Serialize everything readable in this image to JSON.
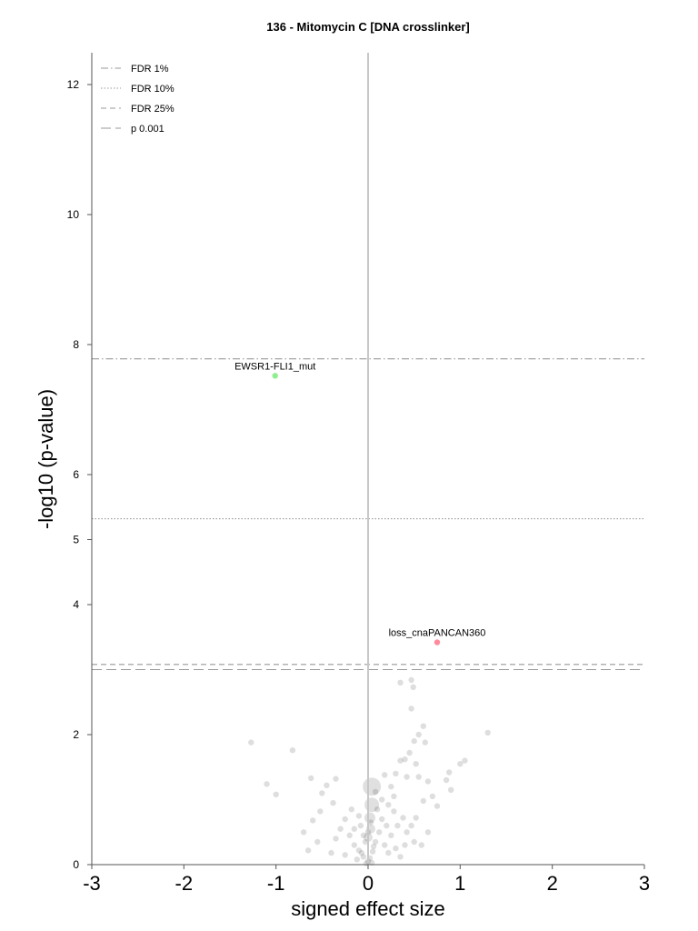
{
  "chart_data": {
    "type": "scatter",
    "title": "136 - Mitomycin C [DNA crosslinker]",
    "xlabel": "signed effect size",
    "ylabel": "-log10 (p-value)",
    "xlim": [
      -3,
      3
    ],
    "ylim": [
      0,
      12.5
    ],
    "x_ticks": [
      "-3",
      "-2",
      "-1",
      "0",
      "1",
      "2",
      "3"
    ],
    "y_ticks": [
      "0",
      "2",
      "4",
      "5",
      "6",
      "8",
      "10",
      "12"
    ],
    "y_tick_values": [
      0,
      2,
      4,
      5,
      6,
      8,
      10,
      12
    ],
    "thresholds": [
      {
        "label": "FDR 1%",
        "y": 7.78,
        "style": "dashdot"
      },
      {
        "label": "FDR 10%",
        "y": 5.32,
        "style": "dotted"
      },
      {
        "label": "FDR 25%",
        "y": 3.08,
        "style": "dashed"
      },
      {
        "label": "p 0.001",
        "y": 3.0,
        "style": "longdash"
      }
    ],
    "legend_position": "top-left",
    "highlighted_points": [
      {
        "label": "EWSR1-FLI1_mut",
        "x": -1.01,
        "y": 7.52,
        "color": "#90ee90"
      },
      {
        "label": "loss_cnaPANCAN360",
        "x": 0.75,
        "y": 3.42,
        "color": "#ff8a9a"
      }
    ],
    "background_points": [
      [
        -1.27,
        1.88
      ],
      [
        -0.82,
        1.76
      ],
      [
        -1.1,
        1.24
      ],
      [
        -1.0,
        1.08
      ],
      [
        1.3,
        2.03
      ],
      [
        1.05,
        1.6
      ],
      [
        1.0,
        1.55
      ],
      [
        0.88,
        1.42
      ],
      [
        0.9,
        1.15
      ],
      [
        0.85,
        1.3
      ],
      [
        0.35,
        2.8
      ],
      [
        0.47,
        2.84
      ],
      [
        0.49,
        2.73
      ],
      [
        0.47,
        2.4
      ],
      [
        0.6,
        2.13
      ],
      [
        0.55,
        2.0
      ],
      [
        0.62,
        1.88
      ],
      [
        0.5,
        1.9
      ],
      [
        0.45,
        1.72
      ],
      [
        0.52,
        1.55
      ],
      [
        0.4,
        1.62
      ],
      [
        0.3,
        1.4
      ],
      [
        0.35,
        1.6
      ],
      [
        0.42,
        1.35
      ],
      [
        0.25,
        1.2
      ],
      [
        0.28,
        1.05
      ],
      [
        0.18,
        1.38
      ],
      [
        0.55,
        1.35
      ],
      [
        0.65,
        1.28
      ],
      [
        0.7,
        1.05
      ],
      [
        0.75,
        0.9
      ],
      [
        0.6,
        0.98
      ],
      [
        0.52,
        0.72
      ],
      [
        0.47,
        0.6
      ],
      [
        0.65,
        0.5
      ],
      [
        -0.35,
        1.32
      ],
      [
        -0.45,
        1.22
      ],
      [
        -0.5,
        1.1
      ],
      [
        -0.38,
        0.95
      ],
      [
        -0.62,
        1.33
      ],
      [
        -0.52,
        0.82
      ],
      [
        -0.6,
        0.68
      ],
      [
        -0.7,
        0.5
      ],
      [
        -0.55,
        0.35
      ],
      [
        -0.65,
        0.22
      ],
      [
        -0.25,
        0.7
      ],
      [
        -0.3,
        0.55
      ],
      [
        -0.2,
        0.45
      ],
      [
        -0.35,
        0.4
      ],
      [
        -0.15,
        0.3
      ],
      [
        -0.4,
        0.18
      ],
      [
        -0.25,
        0.15
      ],
      [
        -0.1,
        0.22
      ],
      [
        -0.05,
        0.12
      ],
      [
        -0.12,
        0.08
      ],
      [
        0.1,
        0.85
      ],
      [
        0.15,
        0.7
      ],
      [
        0.2,
        0.6
      ],
      [
        0.12,
        0.5
      ],
      [
        0.25,
        0.45
      ],
      [
        0.08,
        0.35
      ],
      [
        0.18,
        0.3
      ],
      [
        0.3,
        0.25
      ],
      [
        0.22,
        0.18
      ],
      [
        0.35,
        0.12
      ],
      [
        0.05,
        0.2
      ],
      [
        0.02,
        0.1
      ],
      [
        0.0,
        0.05
      ],
      [
        -0.02,
        0.02
      ],
      [
        0.04,
        0.03
      ],
      [
        0.28,
        0.82
      ],
      [
        0.38,
        0.72
      ],
      [
        0.42,
        0.5
      ],
      [
        0.5,
        0.35
      ],
      [
        0.4,
        0.3
      ],
      [
        0.58,
        0.3
      ],
      [
        0.32,
        0.6
      ],
      [
        0.22,
        0.92
      ],
      [
        0.15,
        1.0
      ],
      [
        0.08,
        1.12
      ],
      [
        -0.08,
        0.6
      ],
      [
        -0.15,
        0.55
      ],
      [
        -0.05,
        0.45
      ],
      [
        -0.18,
        0.85
      ],
      [
        -0.1,
        0.75
      ],
      [
        0.0,
        0.5
      ],
      [
        0.03,
        0.65
      ],
      [
        -0.03,
        0.35
      ],
      [
        0.06,
        0.28
      ],
      [
        -0.07,
        0.18
      ]
    ],
    "large_points": [
      [
        0.04,
        1.2
      ],
      [
        0.04,
        0.92
      ],
      [
        0.02,
        0.72
      ],
      [
        0.0,
        0.42
      ],
      [
        0.03,
        0.55
      ]
    ]
  }
}
